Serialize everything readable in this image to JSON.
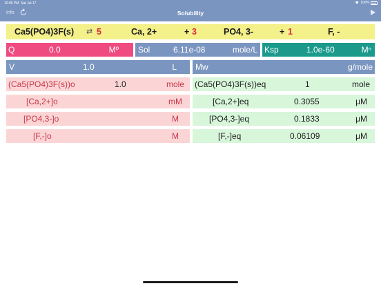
{
  "status_bar": {
    "time": "10:05 PM",
    "date": "Sat Jul 17",
    "battery": "100%"
  },
  "nav": {
    "info_label": "Info",
    "title": "Solubility"
  },
  "equation": {
    "reactant": "Ca5(PO4)3F(s)",
    "arrow": "⇄",
    "coef1": "5",
    "ion1": "Ca, 2+",
    "plus1": "+",
    "coef2": "3",
    "ion2": "PO4, 3-",
    "plus2": "+",
    "coef3": "1",
    "ion3": "F, -"
  },
  "q_box": {
    "label": "Q",
    "value": "0.0",
    "unit": "Mº"
  },
  "sol_box": {
    "label": "Sol",
    "value": "6.11e-08",
    "unit": "mole/L"
  },
  "ksp_box": {
    "label": "Ksp",
    "value": "1.0e-60",
    "unit": "Mⁿ"
  },
  "v_box": {
    "label": "V",
    "value": "1.0",
    "unit": "L"
  },
  "mw_box": {
    "label": "Mw",
    "value": "",
    "unit": "g/mole"
  },
  "initial_rows": [
    {
      "label": "(Ca5(PO4)3F(s))o",
      "value": "1.0",
      "unit": "mole"
    },
    {
      "label": "[Ca,2+]o",
      "value": "",
      "unit": "mM"
    },
    {
      "label": "[PO4,3-]o",
      "value": "",
      "unit": "M"
    },
    {
      "label": "[F,-]o",
      "value": "",
      "unit": "M"
    }
  ],
  "equilibrium_rows": [
    {
      "label": "(Ca5(PO4)3F(s))eq",
      "value": "1",
      "unit": "mole"
    },
    {
      "label": "[Ca,2+]eq",
      "value": "0.3055",
      "unit": "μM"
    },
    {
      "label": "[PO4,3-]eq",
      "value": "0.1833",
      "unit": "μM"
    },
    {
      "label": "[F,-]eq",
      "value": "0.06109",
      "unit": "μM"
    }
  ],
  "colors": {
    "header": "#7a95c0",
    "equation_bg": "#f4f08a",
    "coefficient": "#d92b3a",
    "q_bg": "#ef4b80",
    "ksp_bg": "#1b9a8c",
    "initial_bg": "#fbd5d5",
    "equilibrium_bg": "#d7f6da"
  }
}
